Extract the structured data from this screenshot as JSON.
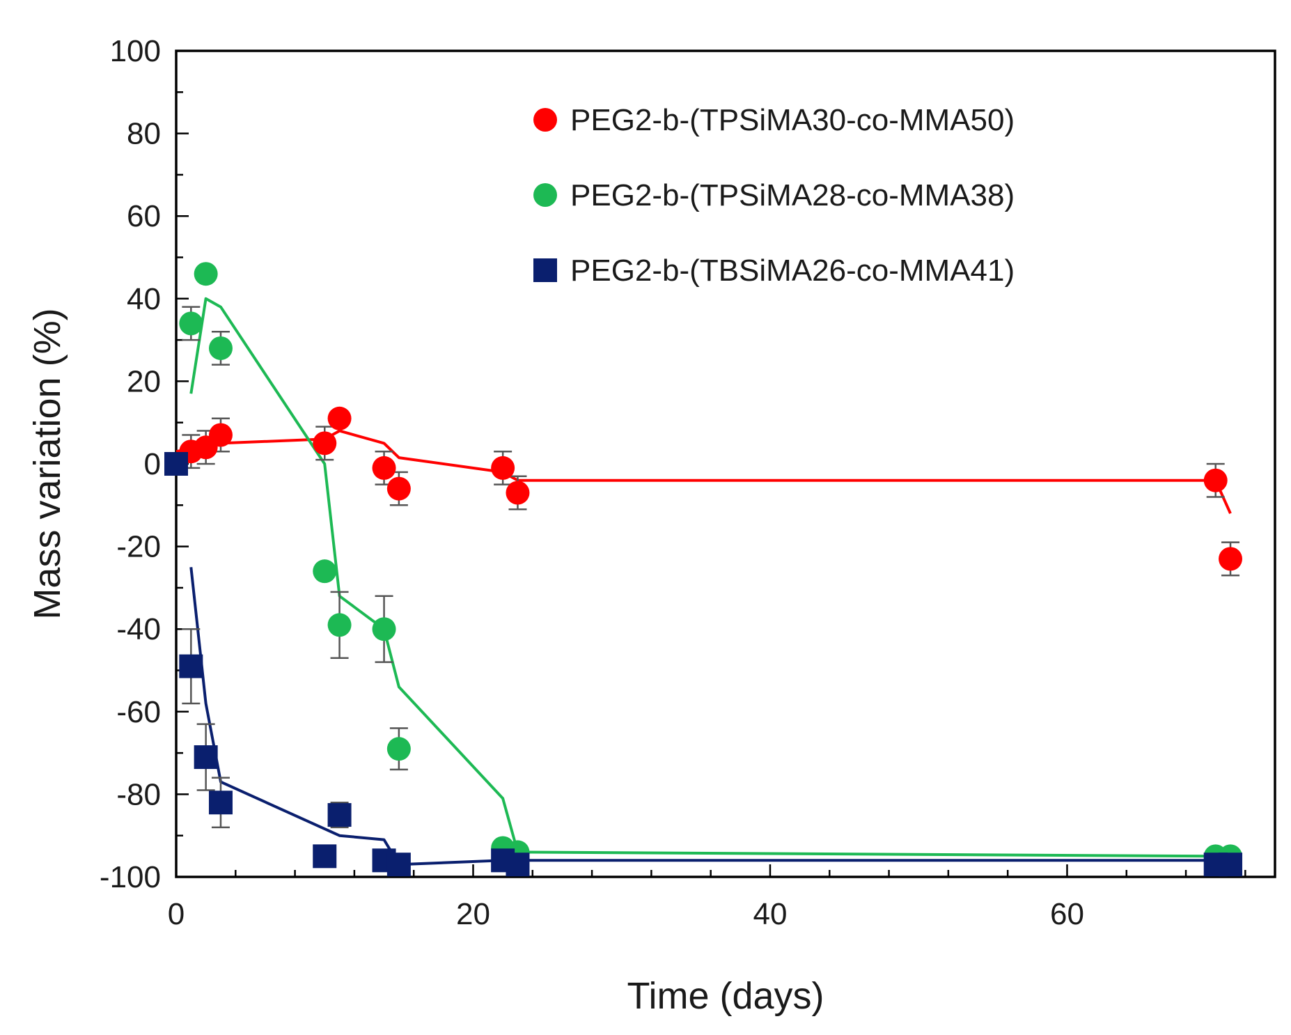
{
  "chart_data": {
    "type": "scatter",
    "title": "",
    "xlabel": "Time (days)",
    "ylabel": "Mass variation (%)",
    "xlim": [
      0,
      74
    ],
    "ylim": [
      -100,
      100
    ],
    "xticks": [
      0,
      20,
      40,
      60
    ],
    "yticks": [
      100,
      80,
      60,
      40,
      20,
      0,
      -20,
      -40,
      -60,
      -80,
      -100
    ],
    "grid": false,
    "legend_position": "top-right",
    "series": [
      {
        "name": "PEG2-b-(TPSiMA30-co-MMA50)",
        "color": "#ff0000",
        "marker": "circle",
        "x": [
          0,
          1,
          2,
          3,
          10,
          11,
          14,
          15,
          22,
          23,
          70,
          71
        ],
        "y": [
          0,
          3,
          4,
          7,
          5,
          11,
          -1,
          -6,
          -1,
          -7,
          -4,
          -23
        ],
        "err": [
          0,
          4,
          4,
          4,
          4,
          0,
          4,
          4,
          4,
          4,
          4,
          4
        ],
        "fit_x": [
          0,
          3,
          10,
          11,
          14,
          15,
          22,
          23,
          70,
          71
        ],
        "fit_y": [
          3,
          5,
          6,
          8,
          5,
          1.5,
          -2,
          -4,
          -4,
          -12
        ]
      },
      {
        "name": "PEG2-b-(TPSiMA28-co-MMA38)",
        "color": "#1db954",
        "marker": "circle",
        "x": [
          1,
          2,
          3,
          10,
          11,
          14,
          15,
          22,
          23,
          70,
          71
        ],
        "y": [
          34,
          46,
          28,
          -26,
          -39,
          -40,
          -69,
          -93,
          -94,
          -95,
          -95
        ],
        "err": [
          4,
          0,
          4,
          0,
          8,
          8,
          5,
          0,
          0,
          0,
          0
        ],
        "fit_x": [
          1,
          2,
          3,
          10,
          11,
          14,
          15,
          22,
          23,
          70,
          71
        ],
        "fit_y": [
          17,
          40,
          38,
          0,
          -32,
          -40,
          -54,
          -81,
          -94,
          -95,
          -95
        ]
      },
      {
        "name": "PEG2-b-(TBSiMA26-co-MMA41)",
        "color": "#0a1f6e",
        "marker": "square",
        "x": [
          0,
          1,
          2,
          3,
          10,
          11,
          14,
          15,
          22,
          23,
          70,
          71
        ],
        "y": [
          0,
          -49,
          -71,
          -82,
          -95,
          -85,
          -96,
          -97,
          -96,
          -97,
          -97,
          -97
        ],
        "err": [
          0,
          9,
          8,
          6,
          0,
          3,
          0,
          0,
          0,
          0,
          0,
          0
        ],
        "fit_x": [
          1,
          2,
          3,
          11,
          14,
          15,
          22,
          23,
          70,
          71
        ],
        "fit_y": [
          -25,
          -58,
          -77,
          -90,
          -91,
          -97,
          -96,
          -96,
          -96,
          -96
        ]
      }
    ]
  }
}
